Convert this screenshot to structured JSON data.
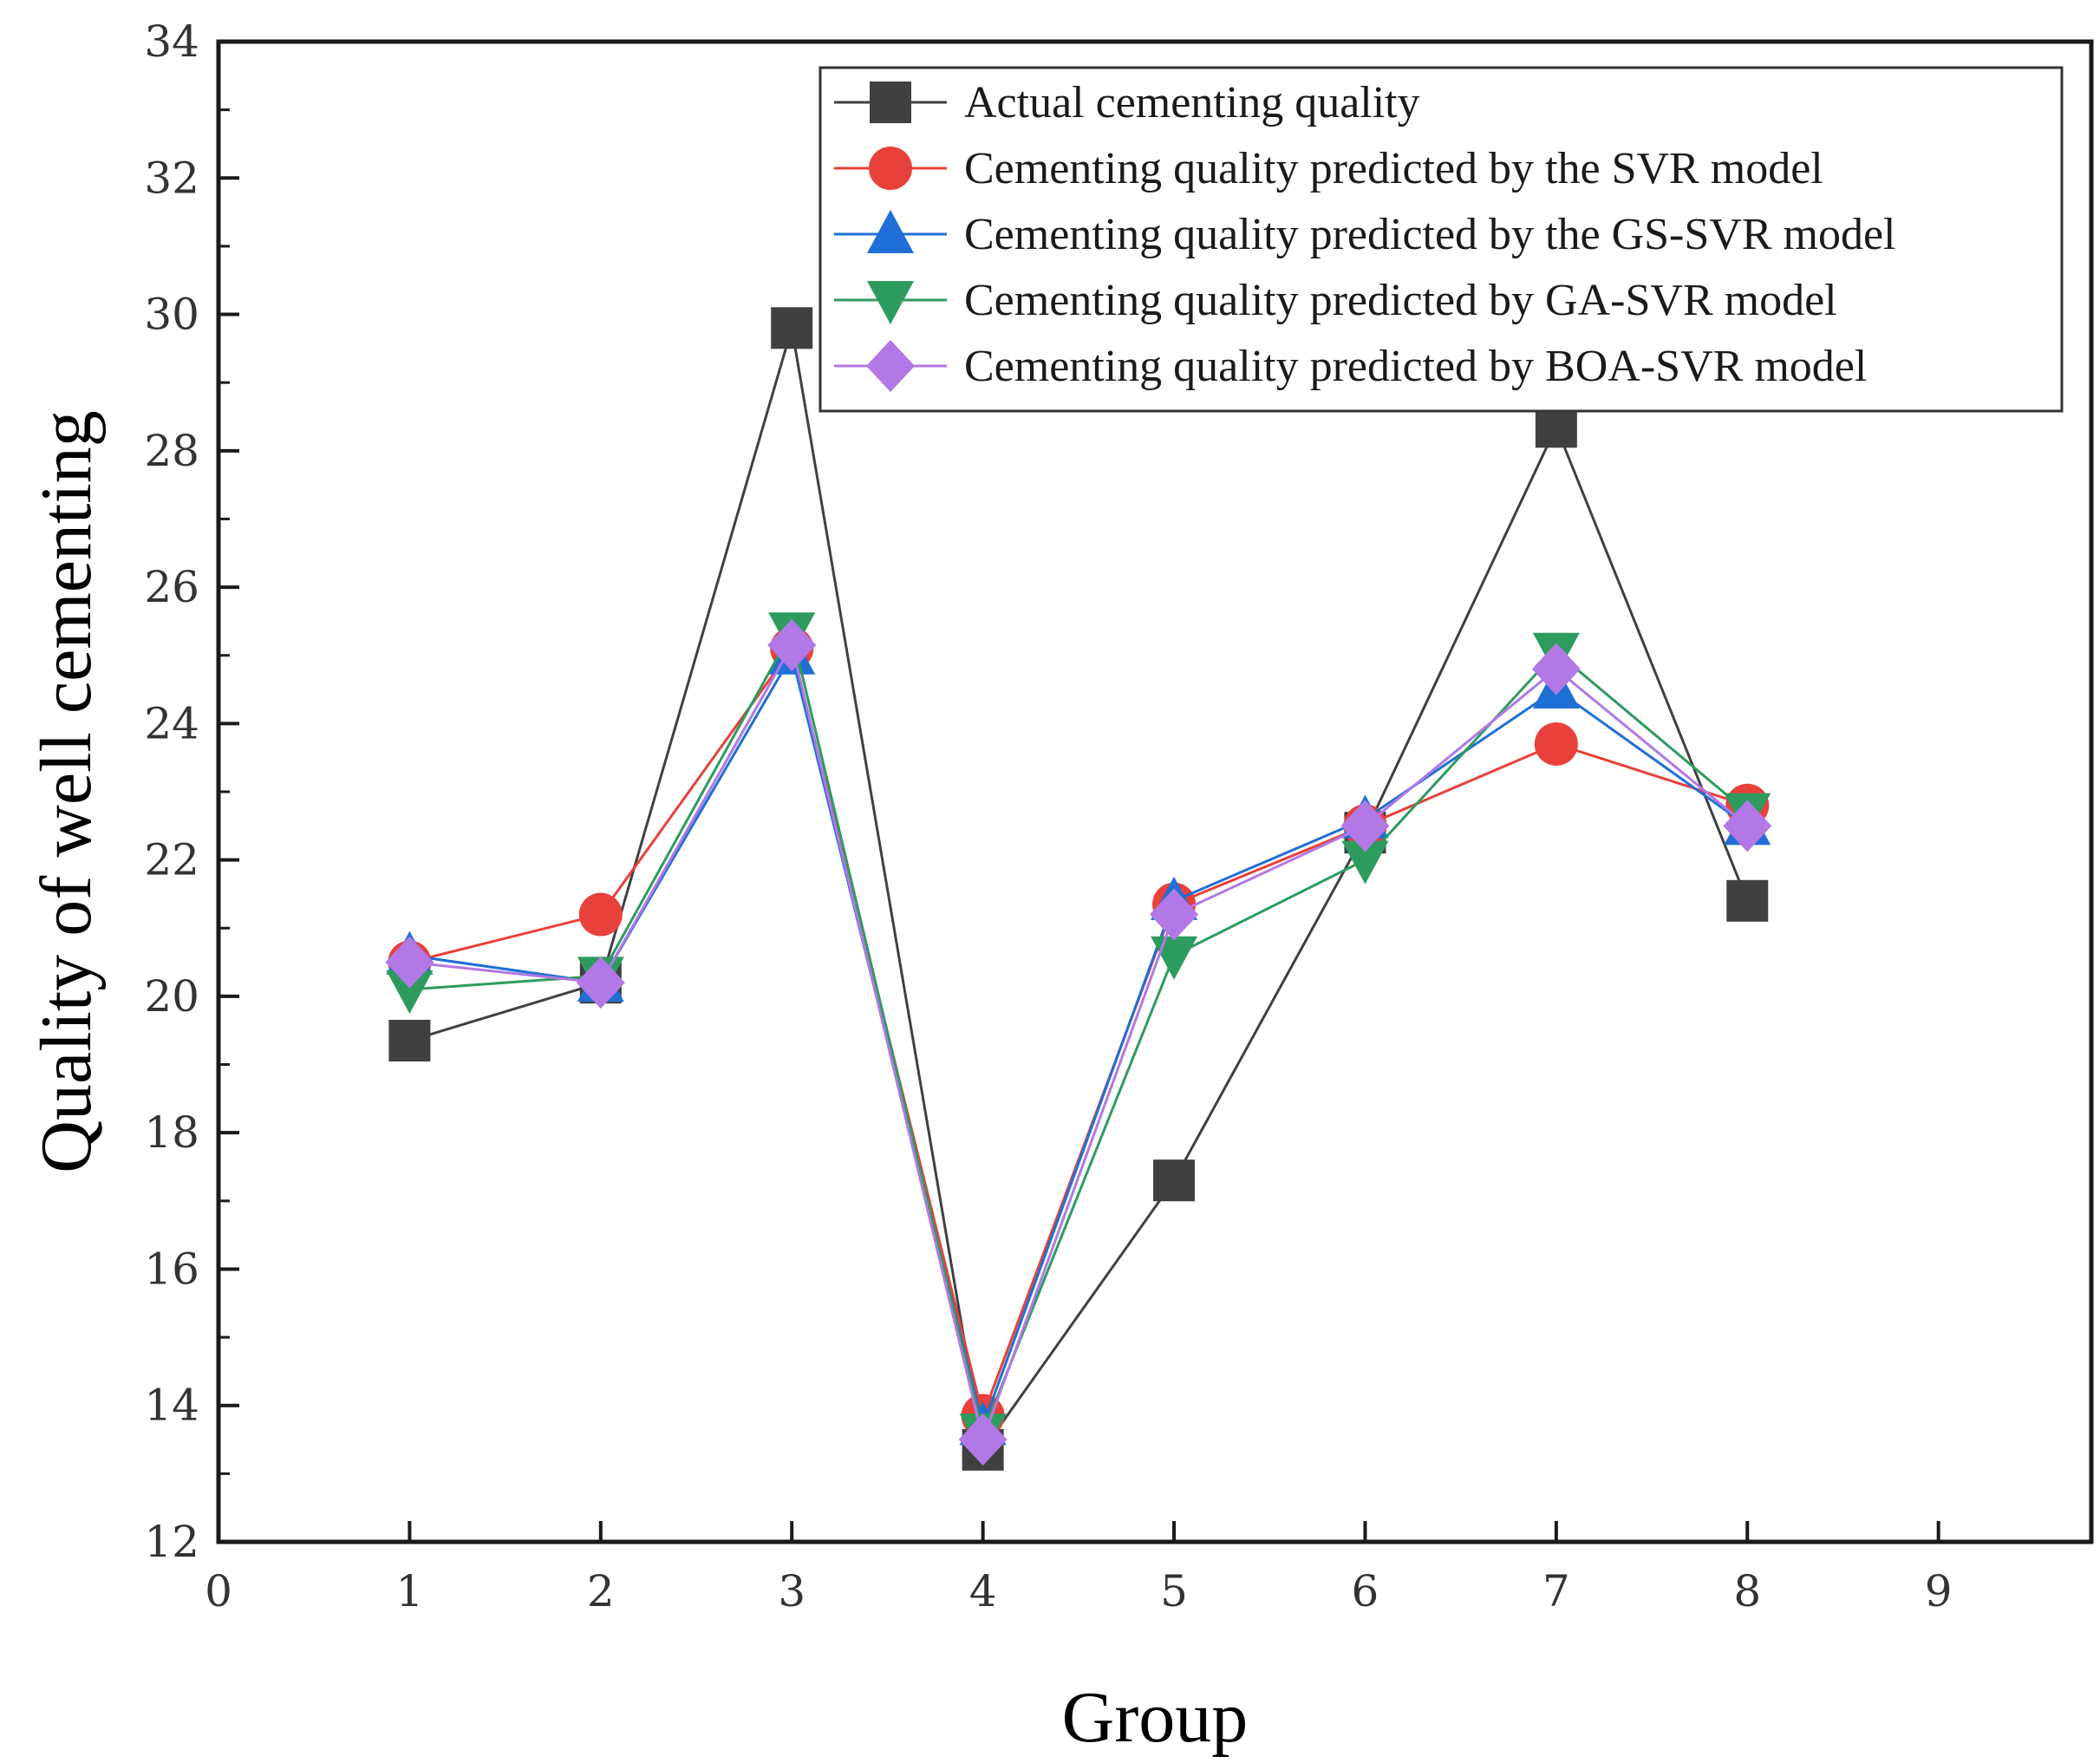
{
  "chart_data": {
    "type": "line",
    "title": "",
    "xlabel": "Group",
    "ylabel": "Quality of well cementing",
    "xlim": [
      0,
      9.8
    ],
    "ylim": [
      12,
      34
    ],
    "xticks": [
      0,
      1,
      2,
      3,
      4,
      5,
      6,
      7,
      8,
      9
    ],
    "yticks": [
      12,
      14,
      16,
      18,
      20,
      22,
      24,
      26,
      28,
      30,
      32,
      34
    ],
    "x": [
      1,
      2,
      3,
      4,
      5,
      6,
      7,
      8
    ],
    "legend_position": "top-right",
    "grid": false,
    "series": [
      {
        "name": "Actual cementing quality",
        "color": "#404040",
        "marker": "square",
        "values": [
          19.35,
          20.2,
          29.8,
          13.35,
          17.3,
          22.4,
          28.35,
          21.4
        ]
      },
      {
        "name": "Cementing quality predicted by the SVR model",
        "color": "#e8403a",
        "marker": "circle",
        "values": [
          20.5,
          21.2,
          25.1,
          13.85,
          21.35,
          22.5,
          23.7,
          22.8
        ]
      },
      {
        "name": "Cementing quality predicted by the GS-SVR model",
        "color": "#1f6fd6",
        "marker": "triangle-up",
        "values": [
          20.6,
          20.2,
          25.0,
          13.7,
          21.4,
          22.6,
          24.5,
          22.5
        ]
      },
      {
        "name": "Cementing quality predicted by GA-SVR model",
        "color": "#2e9b5e",
        "marker": "triangle-down",
        "values": [
          20.1,
          20.3,
          25.35,
          13.6,
          20.6,
          22.0,
          25.05,
          22.7
        ]
      },
      {
        "name": "Cementing quality predicted by BOA-SVR model",
        "color": "#b278e6",
        "marker": "diamond",
        "values": [
          20.5,
          20.2,
          25.15,
          13.5,
          21.2,
          22.5,
          24.8,
          22.5
        ]
      }
    ]
  }
}
